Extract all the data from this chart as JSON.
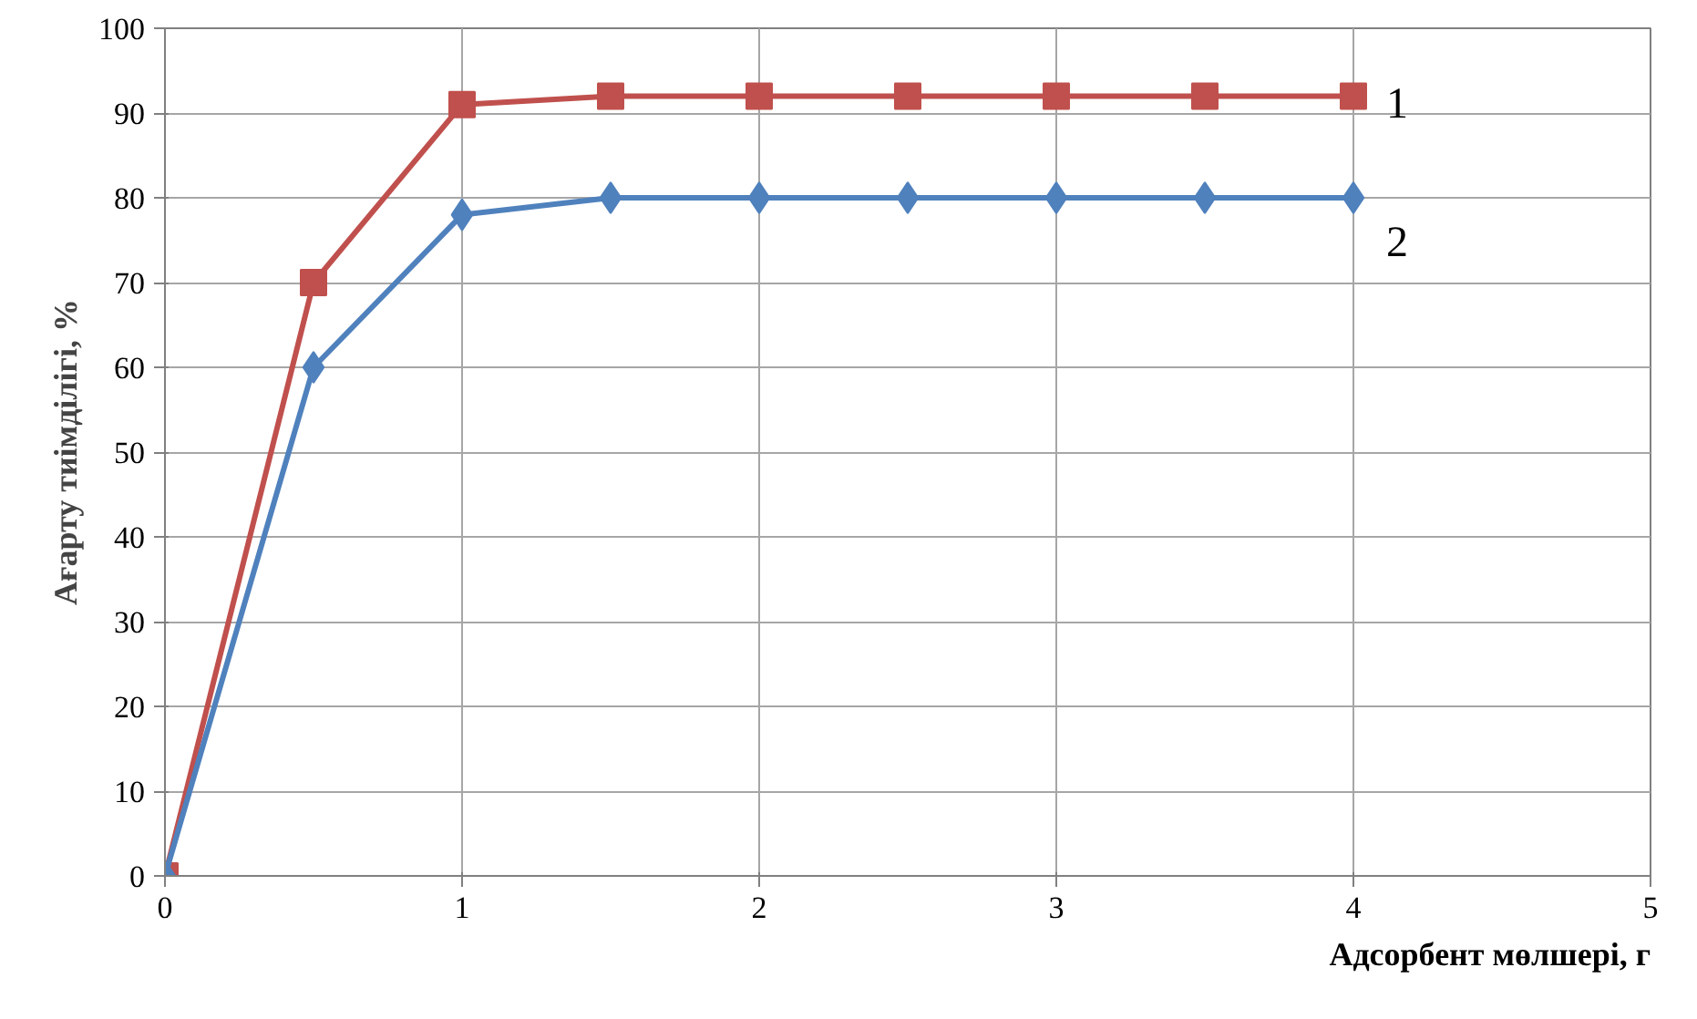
{
  "chart_data": {
    "type": "line",
    "xlabel": "Адсорбент мөлшері, г",
    "ylabel": "Ағарту тиімділігі, %",
    "x": [
      0,
      0.5,
      1,
      1.5,
      2,
      2.5,
      3,
      3.5,
      4
    ],
    "series": [
      {
        "name": "1",
        "color": "#c0504d",
        "marker": "square",
        "values": [
          0,
          70,
          91,
          92,
          92,
          92,
          92,
          92,
          92
        ]
      },
      {
        "name": "2",
        "color": "#4f81bd",
        "marker": "diamond",
        "values": [
          0,
          60,
          78,
          80,
          80,
          80,
          80,
          80,
          80
        ]
      }
    ],
    "xlim": [
      0,
      5
    ],
    "xticks": [
      0,
      1,
      2,
      3,
      4,
      5
    ],
    "ylim": [
      0,
      100
    ],
    "yticks": [
      0,
      10,
      20,
      30,
      40,
      50,
      60,
      70,
      80,
      90,
      100
    ],
    "grid": true
  }
}
